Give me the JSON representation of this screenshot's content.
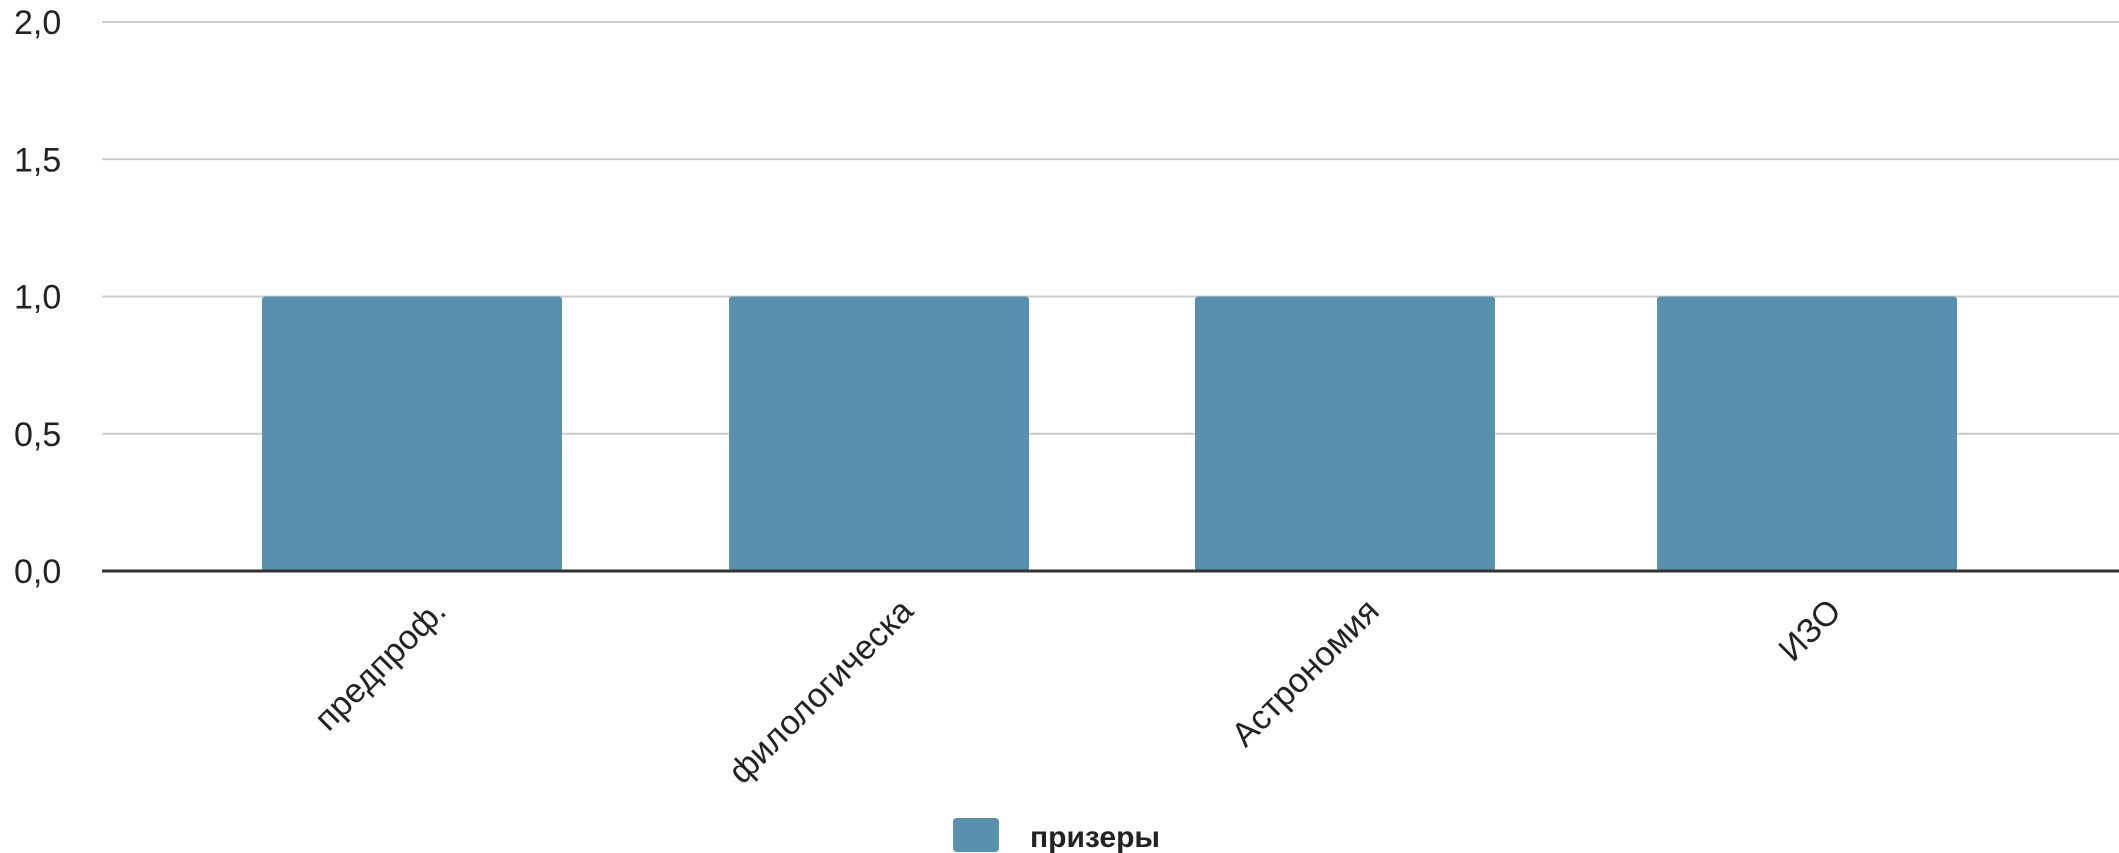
{
  "chart_data": {
    "type": "bar",
    "categories": [
      "предпроф.",
      "филологическа",
      "Астрономия",
      "ИЗО"
    ],
    "series": [
      {
        "name": "призеры",
        "values": [
          1,
          1,
          1,
          1
        ]
      }
    ],
    "yticks": [
      "0,0",
      "0,5",
      "1,0",
      "1,5",
      "2,0"
    ],
    "ylim": [
      0,
      2
    ],
    "grid": true,
    "legend": "bottom-center",
    "title": "",
    "xlabel": "",
    "ylabel": ""
  },
  "colors": {
    "bar": "#5990AE",
    "grid": "#CCCCCC",
    "axis": "#333333"
  }
}
